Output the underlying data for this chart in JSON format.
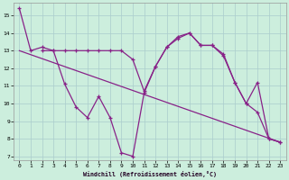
{
  "xlabel": "Windchill (Refroidissement éolien,°C)",
  "bg_color": "#cceedd",
  "line_color": "#882288",
  "grid_color": "#aacccc",
  "ylim": [
    6.8,
    15.7
  ],
  "xlim": [
    -0.5,
    23.5
  ],
  "yticks": [
    7,
    8,
    9,
    10,
    11,
    12,
    13,
    14,
    15
  ],
  "xticks": [
    0,
    1,
    2,
    3,
    4,
    5,
    6,
    7,
    8,
    9,
    10,
    11,
    12,
    13,
    14,
    15,
    16,
    17,
    18,
    19,
    20,
    21,
    22,
    23
  ],
  "series": [
    {
      "x": [
        0,
        1,
        2,
        3,
        4,
        5,
        6,
        7,
        8,
        9,
        10,
        11,
        12,
        13,
        14,
        15,
        16,
        17,
        18,
        19,
        20,
        21,
        22,
        23
      ],
      "y": [
        15.4,
        13.0,
        13.2,
        13.0,
        11.1,
        9.8,
        9.2,
        10.4,
        9.2,
        7.2,
        7.0,
        10.6,
        12.1,
        13.2,
        13.8,
        14.0,
        13.3,
        13.3,
        12.8,
        11.2,
        10.0,
        9.5,
        8.0,
        7.8
      ]
    },
    {
      "x": [
        2,
        3,
        4,
        5,
        6,
        7,
        8,
        9,
        10,
        11,
        12,
        13,
        14,
        15,
        16,
        17,
        18,
        19,
        20,
        21,
        22,
        23
      ],
      "y": [
        13.0,
        13.0,
        13.0,
        13.0,
        13.0,
        13.0,
        13.0,
        13.0,
        12.5,
        10.7,
        12.1,
        13.2,
        13.7,
        14.0,
        13.3,
        13.3,
        12.7,
        11.2,
        10.0,
        11.2,
        8.0,
        7.8
      ]
    },
    {
      "x": [
        0,
        23
      ],
      "y": [
        13.0,
        7.8
      ]
    }
  ]
}
